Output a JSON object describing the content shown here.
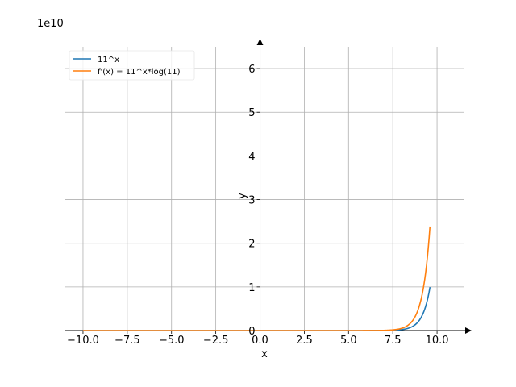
{
  "chart_data": {
    "type": "line",
    "title": "",
    "xlabel": "x",
    "ylabel": "y",
    "y_offset_label": "1e10",
    "xlim": [
      -11,
      11.5
    ],
    "ylim": [
      0,
      6.5
    ],
    "x_ticks": [
      -10.0,
      -7.5,
      -5.0,
      -2.5,
      0.0,
      2.5,
      5.0,
      7.5,
      10.0
    ],
    "x_tick_labels": [
      "−10.0",
      "−7.5",
      "−5.0",
      "−2.5",
      "0.0",
      "2.5",
      "5.0",
      "7.5",
      "10.0"
    ],
    "y_ticks": [
      0,
      1,
      2,
      3,
      4,
      5,
      6
    ],
    "y_tick_labels": [
      "0",
      "1",
      "2",
      "3",
      "4",
      "5",
      "6"
    ],
    "grid": true,
    "legend_position": "top-left",
    "x_range": [
      -10,
      9.6
    ],
    "series": [
      {
        "name": "11^x",
        "color": "#1f77b4",
        "base": 11,
        "multiplier": 1,
        "scale": 10000000000.0
      },
      {
        "name": "f'(x) = 11^x*log(11)",
        "color": "#ff7f0e",
        "base": 11,
        "multiplier": 2.3978952727983707,
        "scale": 10000000000.0
      }
    ]
  }
}
